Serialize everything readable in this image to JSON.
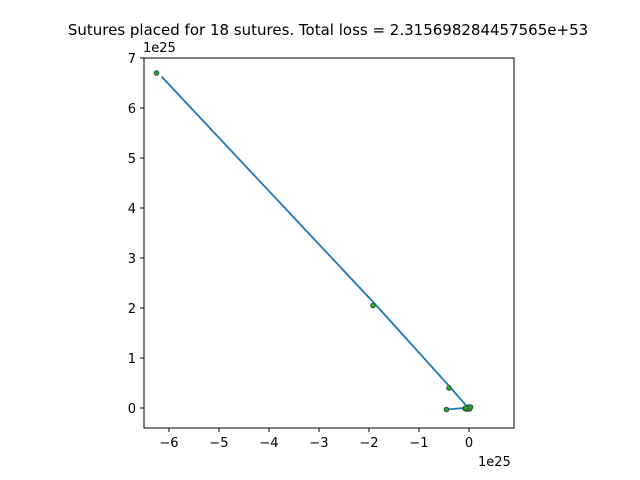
{
  "chart_data": {
    "type": "line",
    "title": "Sutures placed for 18 sutures. Total loss = 2.315698284457565e+53",
    "xlabel": "",
    "ylabel": "",
    "x_offset_text": "1e25",
    "y_offset_text": "1e25",
    "xlim": [
      -6.5,
      0.9
    ],
    "ylim": [
      -0.4,
      7.0
    ],
    "x_ticks": [
      -6,
      -5,
      -4,
      -3,
      -2,
      -1,
      0
    ],
    "y_ticks": [
      0,
      1,
      2,
      3,
      4,
      5,
      6,
      7
    ],
    "x_tick_labels": [
      "−6",
      "−5",
      "−4",
      "−3",
      "−2",
      "−1",
      "0"
    ],
    "y_tick_labels": [
      "0",
      "1",
      "2",
      "3",
      "4",
      "5",
      "6",
      "7"
    ],
    "grid": false,
    "series": [
      {
        "line_color": "#1f77b4",
        "line": {
          "x": [
            -6.15,
            -1.88,
            -0.38,
            -0.03,
            0.0,
            -0.03,
            0.02,
            -0.45
          ],
          "y": [
            6.63,
            2.08,
            0.42,
            0.02,
            0.0,
            -0.02,
            0.01,
            -0.03
          ]
        },
        "points": {
          "marker_color": "#2ca02c",
          "edge_color": "#1b4f2b",
          "x": [
            -6.25,
            -1.92,
            -0.4,
            -0.45,
            0.02,
            -0.05,
            -0.08,
            0.0,
            -0.02,
            0.01,
            0.03,
            -0.06
          ],
          "y": [
            6.7,
            2.05,
            0.4,
            -0.03,
            0.01,
            -0.02,
            -0.01,
            0.02,
            0.0,
            -0.02,
            0.02,
            0.0
          ]
        }
      }
    ]
  }
}
